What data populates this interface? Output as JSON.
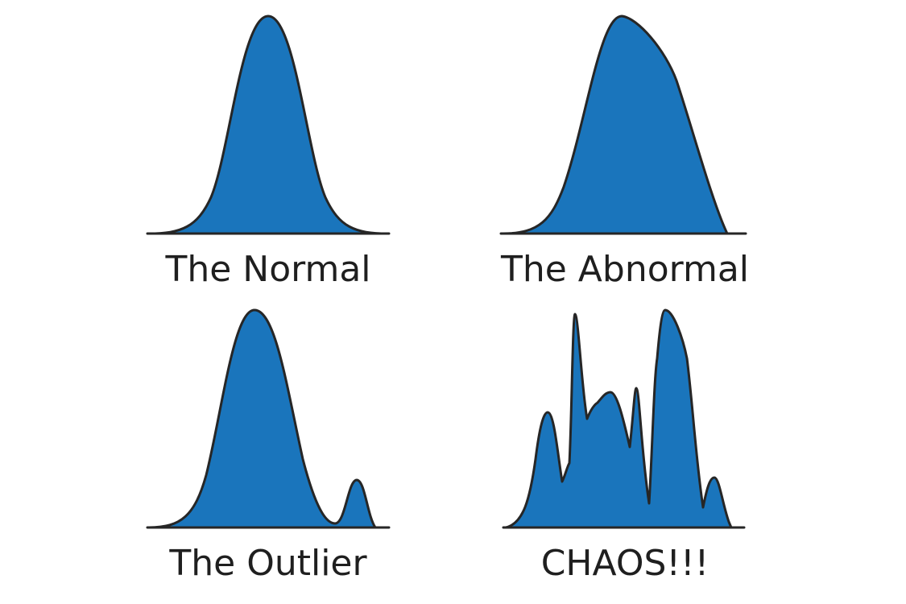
{
  "panels": [
    {
      "label": "The Normal"
    },
    {
      "label": "The Abnormal"
    },
    {
      "label": "The Outlier"
    },
    {
      "label": "CHAOS!!!"
    }
  ]
}
